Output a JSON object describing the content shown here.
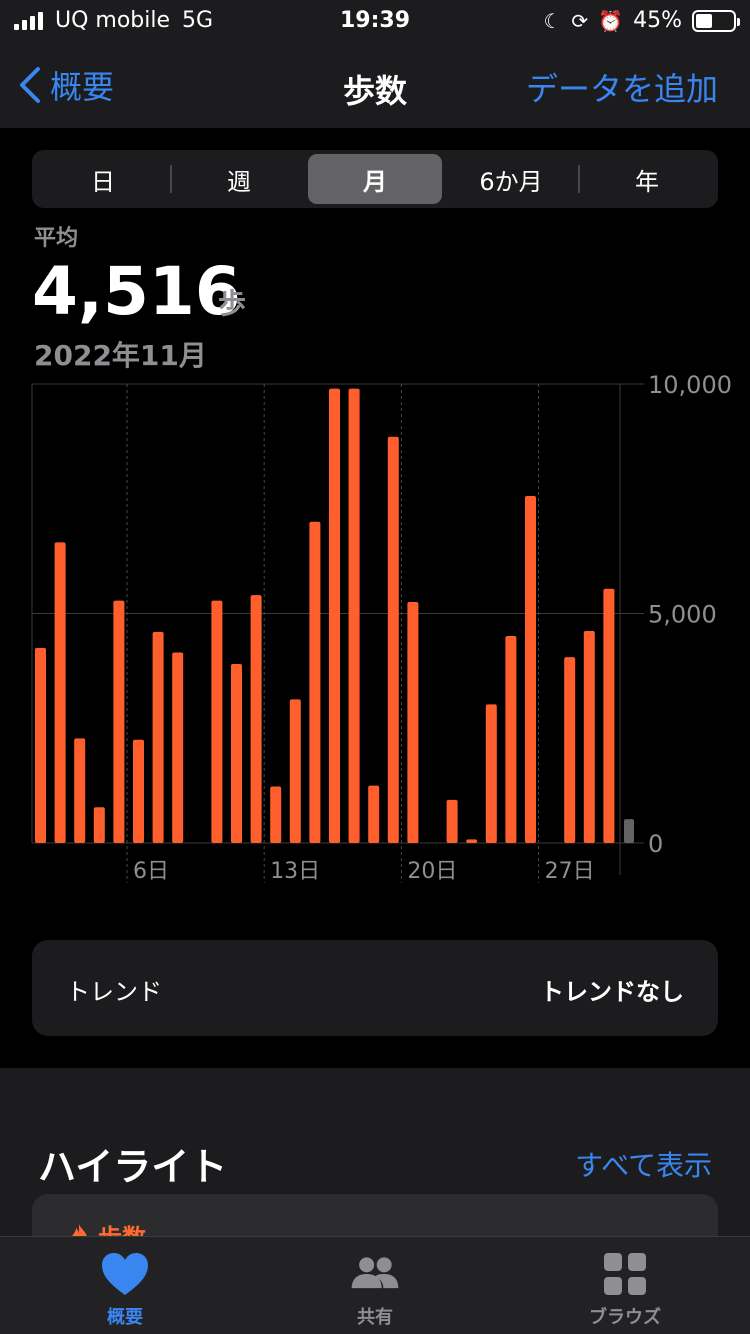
{
  "status_bar": {
    "carrier": "UQ mobile",
    "network": "5G",
    "time": "19:39",
    "battery": "45%",
    "battery_level": 0.45
  },
  "nav": {
    "back_label": "概要",
    "title": "歩数",
    "add_label": "データを追加"
  },
  "segments": [
    {
      "label": "日",
      "selected": false
    },
    {
      "label": "週",
      "selected": false
    },
    {
      "label": "月",
      "selected": true
    },
    {
      "label": "6か月",
      "selected": false
    },
    {
      "label": "年",
      "selected": false
    }
  ],
  "summary": {
    "label": "平均",
    "value": "4,516",
    "unit": "歩",
    "period": "2022年11月"
  },
  "chart_data": {
    "type": "bar",
    "categories": [
      1,
      2,
      3,
      4,
      5,
      6,
      7,
      8,
      9,
      10,
      11,
      12,
      13,
      14,
      15,
      16,
      17,
      18,
      19,
      20,
      21,
      22,
      23,
      24,
      25,
      26,
      27,
      28,
      29,
      30
    ],
    "values": [
      4250,
      6550,
      2280,
      780,
      5280,
      2250,
      4600,
      4150,
      0,
      5280,
      3900,
      5400,
      1230,
      3130,
      7000,
      9900,
      9900,
      1250,
      8850,
      5250,
      0,
      940,
      80,
      3020,
      4510,
      7560,
      0,
      4050,
      4620,
      5540
    ],
    "extra_gray_bar": 520,
    "x_tick_labels": [
      "6日",
      "13日",
      "20日",
      "27日"
    ],
    "x_tick_days": [
      6,
      13,
      20,
      27
    ],
    "y_tick_labels": [
      "10,000",
      "5,000",
      "0"
    ],
    "y_ticks": [
      10000,
      5000,
      0
    ],
    "ylim": [
      0,
      10000
    ],
    "bar_color": "#ff5f2d",
    "gray_bar_color": "#636366",
    "grid": true
  },
  "trend": {
    "label": "トレンド",
    "value": "トレンドなし"
  },
  "highlights": {
    "title": "ハイライト",
    "show_all": "すべて表示",
    "card_title": "歩数"
  },
  "tabbar": [
    {
      "label": "概要",
      "icon": "heart-icon",
      "active": true
    },
    {
      "label": "共有",
      "icon": "people-icon",
      "active": false
    },
    {
      "label": "ブラウズ",
      "icon": "grid-icon",
      "active": false
    }
  ],
  "colors": {
    "accent": "#3a86f0",
    "steps": "#ff5f2d",
    "background": "#000000",
    "card": "#1c1c1e"
  }
}
